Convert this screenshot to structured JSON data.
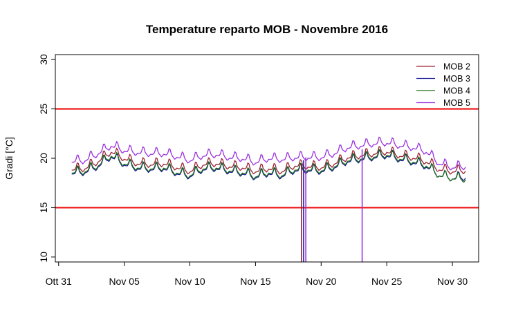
{
  "chart_data": {
    "type": "line",
    "title": "Temperature reparto MOB - Novembre 2016",
    "xlabel": "",
    "ylabel": "Gradi [°C]",
    "x_ticks": [
      {
        "date": "2016-10-31",
        "label": "Ott 31"
      },
      {
        "date": "2016-11-05",
        "label": "Nov 05"
      },
      {
        "date": "2016-11-10",
        "label": "Nov 10"
      },
      {
        "date": "2016-11-15",
        "label": "Nov 15"
      },
      {
        "date": "2016-11-20",
        "label": "Nov 20"
      },
      {
        "date": "2016-11-25",
        "label": "Nov 25"
      },
      {
        "date": "2016-11-30",
        "label": "Nov 30"
      }
    ],
    "xlim": [
      "2016-10-30T18:00",
      "2016-12-02T00:00"
    ],
    "ylim": [
      9.5,
      30.5
    ],
    "y_ticks": [
      10,
      15,
      20,
      25,
      30
    ],
    "grid": false,
    "legend_position": "top-right",
    "reference_lines": [
      {
        "y": 25,
        "color": "#ee1111"
      },
      {
        "y": 15,
        "color": "#ee1111"
      }
    ],
    "x": [
      "2016-11-01",
      "2016-11-02",
      "2016-11-03",
      "2016-11-04",
      "2016-11-05",
      "2016-11-06",
      "2016-11-07",
      "2016-11-08",
      "2016-11-09",
      "2016-11-10",
      "2016-11-11",
      "2016-11-12",
      "2016-11-13",
      "2016-11-14",
      "2016-11-15",
      "2016-11-16",
      "2016-11-17",
      "2016-11-18",
      "2016-11-19",
      "2016-11-20",
      "2016-11-21",
      "2016-11-22",
      "2016-11-23",
      "2016-11-24",
      "2016-11-25",
      "2016-11-26",
      "2016-11-27",
      "2016-11-28",
      "2016-11-29",
      "2016-11-30",
      "2016-12-01"
    ],
    "series": [
      {
        "name": "MOB 2",
        "color": "#9b2335",
        "values": [
          18.8,
          18.9,
          19.6,
          20.6,
          19.9,
          19.4,
          19.3,
          19.4,
          19.0,
          18.6,
          19.3,
          19.4,
          19.1,
          19.0,
          18.6,
          18.9,
          18.6,
          19.2,
          19.1,
          19.0,
          19.4,
          20.0,
          20.2,
          20.4,
          20.6,
          20.2,
          20.0,
          19.6,
          18.8,
          18.6,
          18.7
        ]
      },
      {
        "name": "MOB 3",
        "color": "#1f1f9a",
        "values": [
          18.4,
          18.5,
          19.1,
          20.1,
          19.3,
          18.9,
          18.8,
          18.9,
          18.4,
          18.1,
          18.8,
          18.9,
          18.6,
          18.4,
          18.0,
          18.4,
          18.1,
          18.7,
          18.7,
          18.6,
          19.0,
          19.6,
          19.8,
          20.0,
          20.2,
          19.8,
          19.5,
          19.1,
          18.2,
          17.9,
          18.0
        ]
      },
      {
        "name": "MOB 4",
        "color": "#1a6b1a",
        "values": [
          18.5,
          18.6,
          19.2,
          20.2,
          19.4,
          19.0,
          18.9,
          19.0,
          18.5,
          18.2,
          18.9,
          19.0,
          18.7,
          18.5,
          18.1,
          18.5,
          18.2,
          18.8,
          18.8,
          18.7,
          19.1,
          19.7,
          19.9,
          20.1,
          20.3,
          19.9,
          19.6,
          19.2,
          18.2,
          17.9,
          17.8
        ]
      },
      {
        "name": "MOB 5",
        "color": "#9b30e0",
        "values": [
          19.6,
          19.7,
          20.4,
          21.2,
          20.7,
          20.5,
          20.4,
          20.4,
          20.1,
          19.7,
          20.2,
          20.3,
          20.0,
          19.9,
          19.5,
          19.9,
          19.8,
          20.0,
          20.0,
          20.0,
          20.4,
          21.0,
          21.2,
          21.4,
          21.5,
          21.2,
          21.0,
          20.6,
          19.4,
          19.0,
          19.1
        ]
      }
    ],
    "annotations": [
      {
        "type": "vertical-segment",
        "series": "MOB 2",
        "x": "2016-11-18T12:00",
        "y_from": 9.5,
        "y_to": 19.4
      },
      {
        "type": "vertical-segment",
        "series": "MOB 3",
        "x": "2016-11-18T16:00",
        "y_from": 9.5,
        "y_to": 19.8
      },
      {
        "type": "vertical-segment",
        "series": "MOB 5",
        "x": "2016-11-18T20:00",
        "y_from": 9.5,
        "y_to": 20.1
      },
      {
        "type": "vertical-segment",
        "series": "MOB 5",
        "x": "2016-11-23T03:00",
        "y_from": 9.5,
        "y_to": 20.9
      }
    ]
  }
}
